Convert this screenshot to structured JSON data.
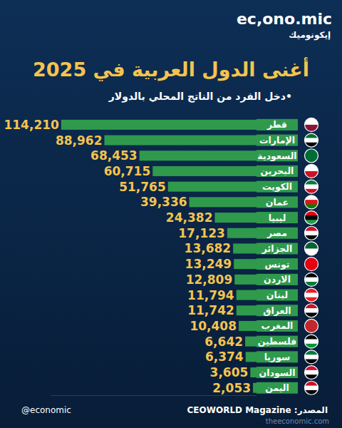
{
  "chart_data": {
    "type": "bar",
    "orientation": "horizontal",
    "title": "أغنى الدول العربية في 2025",
    "subtitle": "•دخل الفرد من الناتج المحلي بالدولار",
    "categories": [
      "قطر",
      "الإمارات",
      "السعودية",
      "البحرين",
      "الكويت",
      "عمان",
      "ليبيا",
      "مصر",
      "الجزائر",
      "تونس",
      "الاردن",
      "لبنان",
      "العراق",
      "المغرب",
      "فلسطين",
      "سوريا",
      "السودان",
      "اليمن"
    ],
    "values": [
      114210,
      88962,
      68453,
      60715,
      51765,
      39336,
      24382,
      17123,
      13682,
      13249,
      12809,
      11794,
      11742,
      10408,
      6642,
      6374,
      3605,
      2053
    ],
    "value_labels": [
      "114,210",
      "88,962",
      "68,453",
      "60,715",
      "51,765",
      "39,336",
      "24,382",
      "17,123",
      "13,682",
      "13,249",
      "12,809",
      "11,794",
      "11,742",
      "10,408",
      "6,642",
      "6,374",
      "3,605",
      "2,053"
    ],
    "color": "#2f9a4c",
    "xlim": [
      0,
      120000
    ],
    "data_labels": true,
    "tick_labels": false,
    "grid": false,
    "annotations": [
      "ec,ono.mic",
      "إيكونوميك",
      "@economic",
      "المصدر: CEOWORLD Magazine",
      "theeconomic.com"
    ]
  }
}
